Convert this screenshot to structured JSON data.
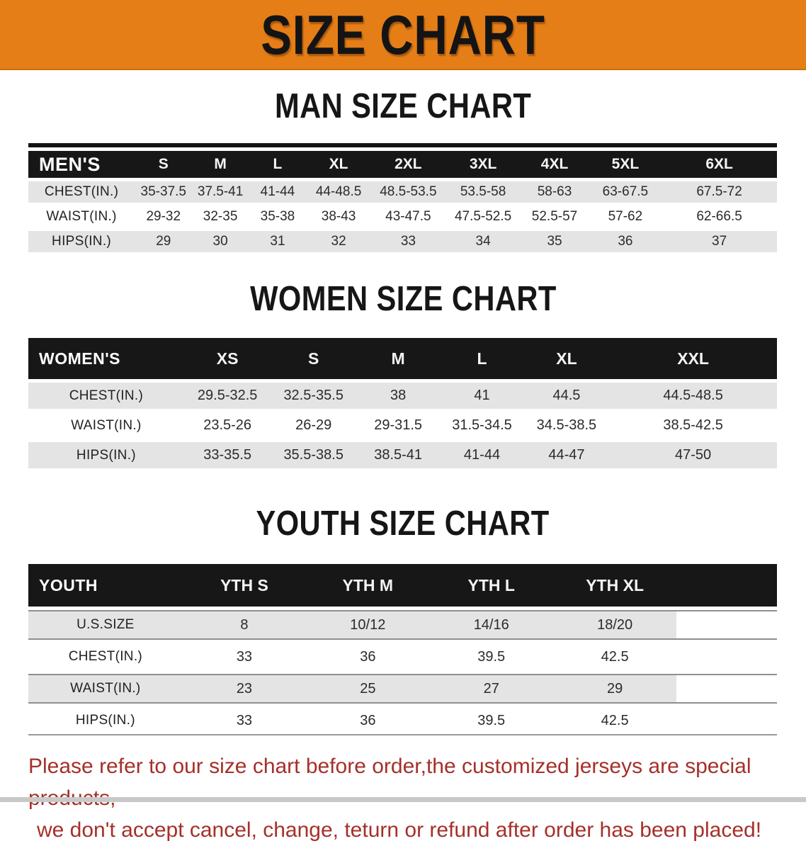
{
  "banner": {
    "title": "SIZE CHART"
  },
  "colors": {
    "banner_bg": "#E67E17",
    "header_bg": "#171717",
    "row_alt_bg": "#E4E4E4",
    "disclaimer_color": "#A5302A"
  },
  "sections": [
    {
      "id": "men",
      "heading": "MAN SIZE CHART",
      "table": {
        "label": "MEN'S",
        "columns": [
          "S",
          "M",
          "L",
          "XL",
          "2XL",
          "3XL",
          "4XL",
          "5XL",
          "6XL"
        ],
        "rows": [
          {
            "label": "CHEST(IN.)",
            "values": [
              "35-37.5",
              "37.5-41",
              "41-44",
              "44-48.5",
              "48.5-53.5",
              "53.5-58",
              "58-63",
              "63-67.5",
              "67.5-72"
            ]
          },
          {
            "label": "WAIST(IN.)",
            "values": [
              "29-32",
              "32-35",
              "35-38",
              "38-43",
              "43-47.5",
              "47.5-52.5",
              "52.5-57",
              "57-62",
              "62-66.5"
            ]
          },
          {
            "label": "HIPS(IN.)",
            "values": [
              "29",
              "30",
              "31",
              "32",
              "33",
              "34",
              "35",
              "36",
              "37"
            ]
          }
        ]
      }
    },
    {
      "id": "women",
      "heading": "WOMEN SIZE CHART",
      "table": {
        "label": "WOMEN'S",
        "columns": [
          "XS",
          "S",
          "M",
          "L",
          "XL",
          "XXL"
        ],
        "rows": [
          {
            "label": "CHEST(IN.)",
            "values": [
              "29.5-32.5",
              "32.5-35.5",
              "38",
              "41",
              "44.5",
              "44.5-48.5"
            ]
          },
          {
            "label": "WAIST(IN.)",
            "values": [
              "23.5-26",
              "26-29",
              "29-31.5",
              "31.5-34.5",
              "34.5-38.5",
              "38.5-42.5"
            ]
          },
          {
            "label": "HIPS(IN.)",
            "values": [
              "33-35.5",
              "35.5-38.5",
              "38.5-41",
              "41-44",
              "44-47",
              "47-50"
            ]
          }
        ]
      }
    },
    {
      "id": "youth",
      "heading": "YOUTH SIZE CHART",
      "table": {
        "label": "YOUTH",
        "columns": [
          "YTH S",
          "YTH M",
          "YTH L",
          "YTH XL"
        ],
        "rows": [
          {
            "label": "U.S.SIZE",
            "values": [
              "8",
              "10/12",
              "14/16",
              "18/20"
            ]
          },
          {
            "label": "CHEST(IN.)",
            "values": [
              "33",
              "36",
              "39.5",
              "42.5"
            ]
          },
          {
            "label": "WAIST(IN.)",
            "values": [
              "23",
              "25",
              "27",
              "29"
            ]
          },
          {
            "label": "HIPS(IN.)",
            "values": [
              "33",
              "36",
              "39.5",
              "42.5"
            ]
          }
        ]
      }
    }
  ],
  "disclaimer": {
    "line1": "Please refer to our size chart before order,the customized jerseys are special products,",
    "line2": "we don't accept cancel, change, teturn or refund after order has been placed!"
  }
}
